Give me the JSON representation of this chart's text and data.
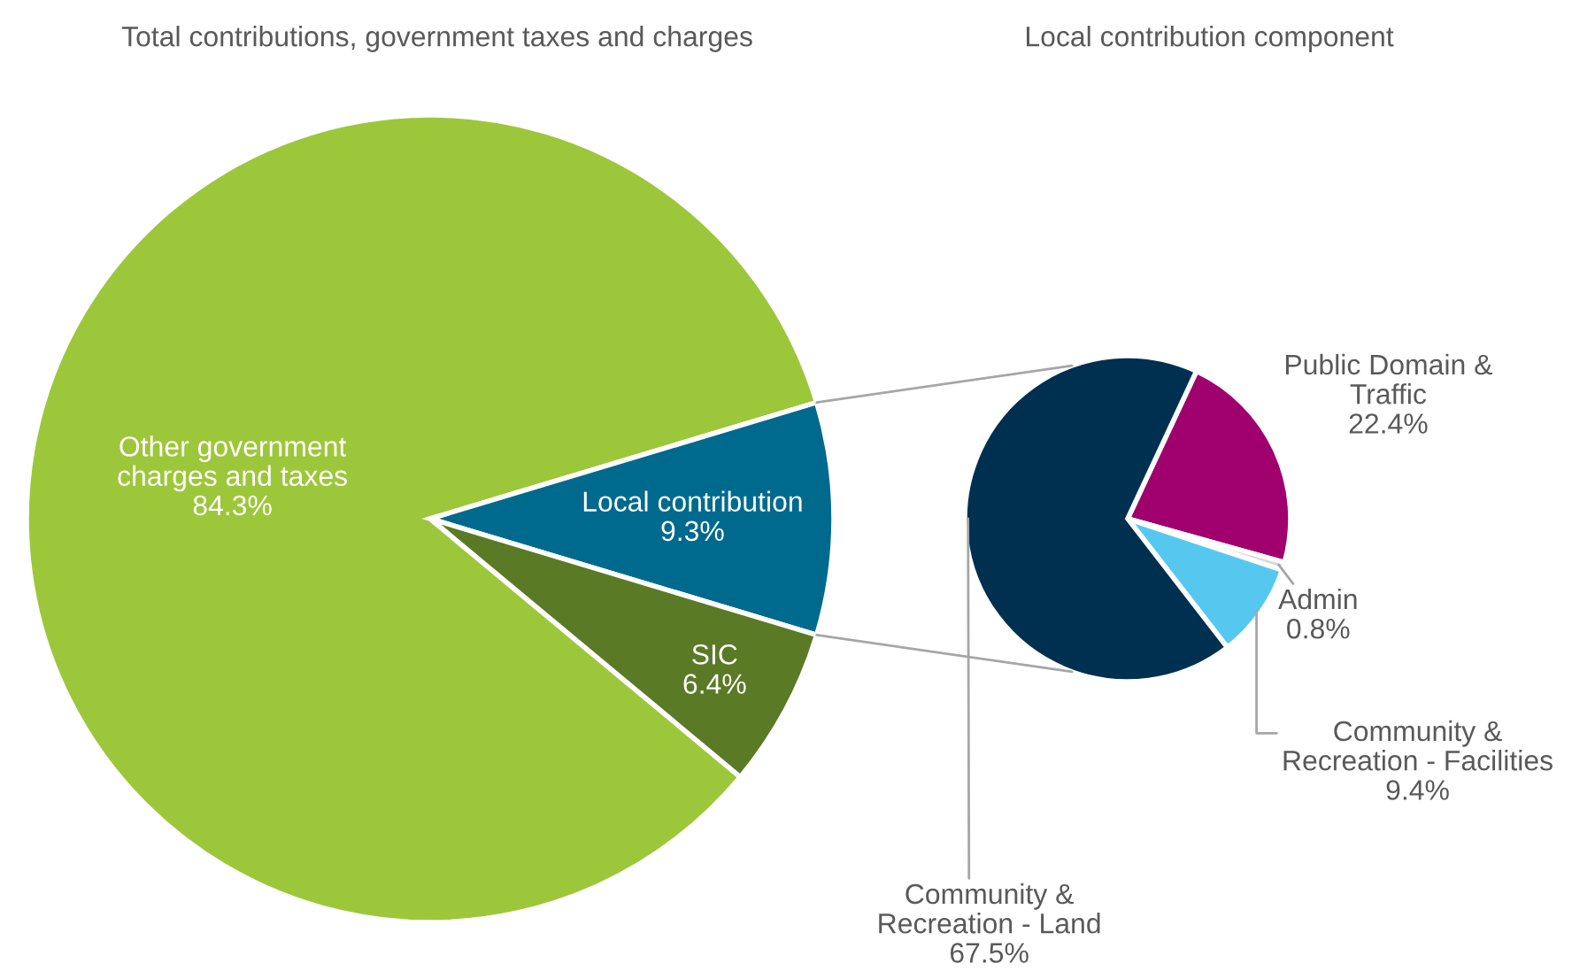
{
  "chart_data": [
    {
      "type": "pie",
      "title": "Total contributions, government taxes and charges",
      "categories": [
        "Other government\ncharges and taxes",
        "Local contribution",
        "SIC"
      ],
      "values": [
        84.3,
        9.3,
        6.4
      ],
      "colors": [
        "#9dc73a",
        "#006a8e",
        "#5a7a25"
      ],
      "value_labels": [
        "84.3%",
        "9.3%",
        "6.4%"
      ]
    },
    {
      "type": "pie",
      "title": "Local contribution component",
      "categories": [
        "Public Domain &\nTraffic",
        "Admin",
        "Community &\nRecreation - Facilities",
        "Community &\nRecreation - Land"
      ],
      "values": [
        22.4,
        0.8,
        9.4,
        67.5
      ],
      "colors": [
        "#a0006e",
        "#d9d9d9",
        "#56c8f0",
        "#00304f"
      ],
      "value_labels": [
        "22.4%",
        "0.8%",
        "9.4%",
        "67.5%"
      ]
    }
  ]
}
